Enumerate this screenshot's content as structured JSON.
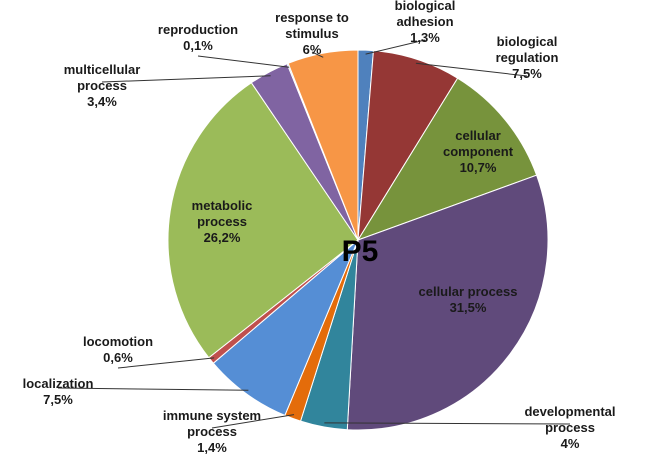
{
  "chart_data": {
    "type": "pie",
    "title": "P5",
    "categories": [
      "biological adhesion",
      "biological regulation",
      "cellular component",
      "cellular process",
      "developmental process",
      "immune system process",
      "localization",
      "locomotion",
      "metabolic process",
      "multicellular process",
      "reproduction",
      "response to stimulus"
    ],
    "values": [
      1.3,
      7.5,
      10.7,
      31.5,
      4,
      1.4,
      7.5,
      0.6,
      26.2,
      3.4,
      0.1,
      6
    ],
    "value_labels": [
      "1,3%",
      "7,5%",
      "10,7%",
      "31,5%",
      "4%",
      "1,4%",
      "7,5%",
      "0,6%",
      "26,2%",
      "3,4%",
      "0,1%",
      "6%"
    ],
    "colors": [
      "#4f81bd",
      "#953735",
      "#77933c",
      "#604a7b",
      "#31859c",
      "#e46c0a",
      "#558ed5",
      "#c0504d",
      "#9bbb59",
      "#8064a2",
      "#4bacc6",
      "#f79646"
    ]
  }
}
